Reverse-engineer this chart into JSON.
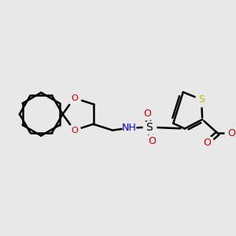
{
  "background_color": "#e8e8e8",
  "bond_color": "#000000",
  "bond_width": 1.8,
  "atom_colors": {
    "S": "#c8b400",
    "S_sulfonyl": "#000000",
    "O": "#cc0000",
    "N": "#0000cc",
    "C": "#000000"
  },
  "figsize": [
    3.0,
    3.0
  ],
  "dpi": 100
}
